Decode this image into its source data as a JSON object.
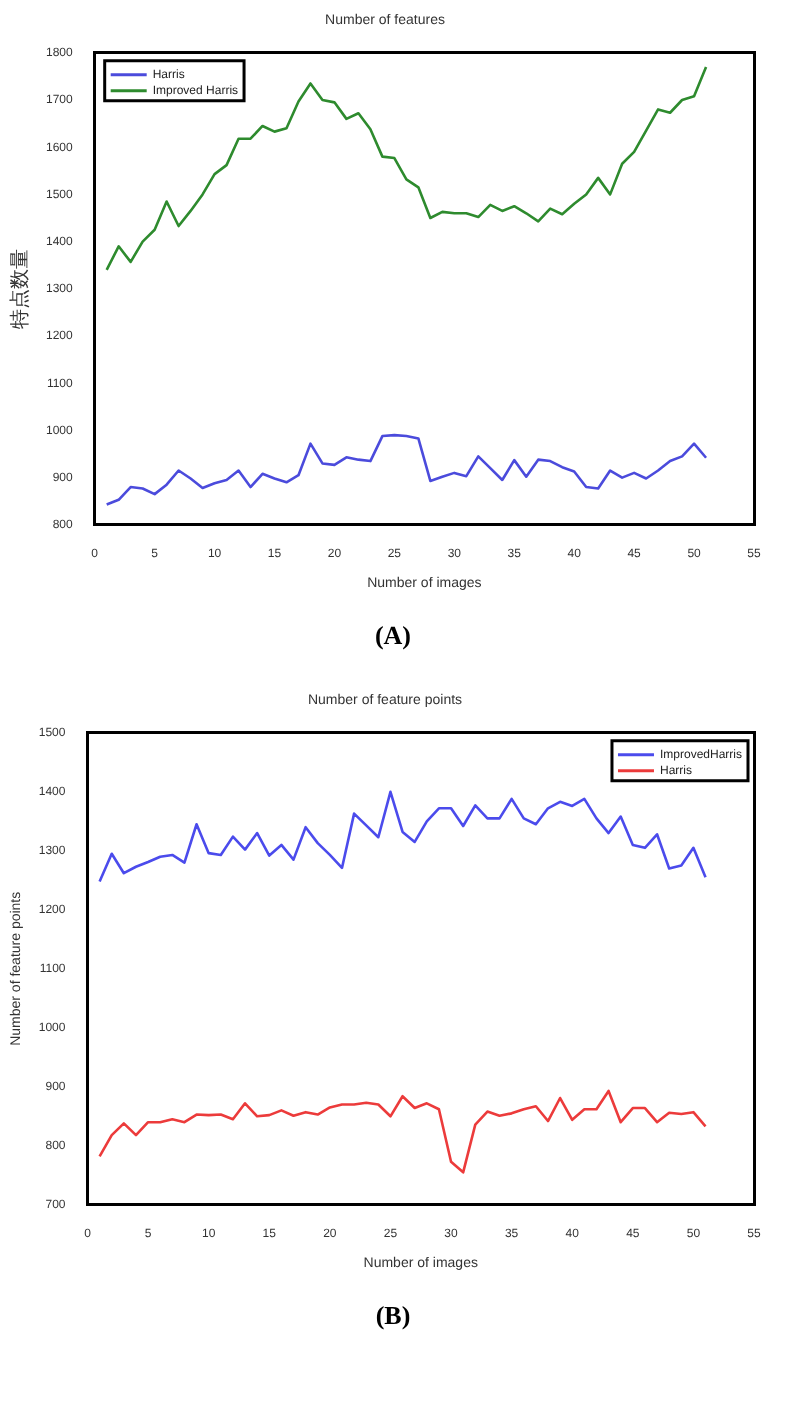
{
  "chart_data": [
    {
      "type": "line",
      "title": "Number of features",
      "xlabel": "Number of images",
      "ylabel": "特点数量",
      "annotations": [
        "(A)"
      ],
      "x": [
        1,
        2,
        3,
        4,
        5,
        6,
        7,
        8,
        9,
        10,
        11,
        12,
        13,
        14,
        15,
        16,
        17,
        18,
        19,
        20,
        21,
        22,
        23,
        24,
        25,
        26,
        27,
        28,
        29,
        30,
        31,
        32,
        33,
        34,
        35,
        36,
        37,
        38,
        39,
        40,
        41,
        42,
        43,
        44,
        45,
        46,
        47,
        48,
        49,
        50,
        51
      ],
      "series": [
        {
          "name": "Harris",
          "color": "#4b4bdc",
          "values": [
            843,
            853,
            880,
            877,
            865,
            885,
            915,
            898,
            878,
            888,
            895,
            915,
            880,
            908,
            898,
            890,
            905,
            972,
            930,
            927,
            943,
            938,
            935,
            988,
            990,
            988,
            983,
            893,
            902,
            910,
            903,
            945,
            920,
            895,
            937,
            902,
            938,
            935,
            922,
            913,
            880,
            877,
            915,
            900,
            910,
            898,
            915,
            935,
            945,
            972,
            942
          ]
        },
        {
          "name": "Improved Harris",
          "color": "#2e8b2e",
          "values": [
            1340,
            1390,
            1357,
            1400,
            1425,
            1485,
            1433,
            1465,
            1500,
            1543,
            1562,
            1618,
            1618,
            1645,
            1633,
            1640,
            1697,
            1735,
            1700,
            1695,
            1660,
            1672,
            1638,
            1580,
            1577,
            1532,
            1515,
            1450,
            1463,
            1460,
            1460,
            1452,
            1478,
            1465,
            1475,
            1460,
            1443,
            1470,
            1458,
            1480,
            1500,
            1535,
            1500,
            1565,
            1590,
            1635,
            1680,
            1673,
            1700,
            1708,
            1770
          ]
        }
      ],
      "xlim": [
        0,
        55
      ],
      "xticks": [
        0,
        5,
        10,
        15,
        20,
        25,
        30,
        35,
        40,
        45,
        50,
        55
      ],
      "ylim": [
        800,
        1800
      ],
      "yticks": [
        800,
        900,
        1000,
        1100,
        1200,
        1300,
        1400,
        1500,
        1600,
        1700,
        1800
      ],
      "legend": "top left"
    },
    {
      "type": "line",
      "title": "Number of feature points",
      "xlabel": "Number of images",
      "ylabel": "Number of feature points",
      "annotations": [
        "(B)"
      ],
      "x": [
        1,
        2,
        3,
        4,
        5,
        6,
        7,
        8,
        9,
        10,
        11,
        12,
        13,
        14,
        15,
        16,
        17,
        18,
        19,
        20,
        21,
        22,
        23,
        24,
        25,
        26,
        27,
        28,
        29,
        30,
        31,
        32,
        33,
        34,
        35,
        36,
        37,
        38,
        39,
        40,
        41,
        42,
        43,
        44,
        45,
        46,
        47,
        48,
        49,
        50,
        51
      ],
      "series": [
        {
          "name": "ImprovedHarris",
          "color": "#4b4bec",
          "values": [
            1248,
            1295,
            1262,
            1273,
            1281,
            1290,
            1293,
            1280,
            1345,
            1296,
            1293,
            1324,
            1302,
            1330,
            1292,
            1310,
            1285,
            1340,
            1313,
            1293,
            1271,
            1363,
            1343,
            1323,
            1400,
            1332,
            1315,
            1350,
            1372,
            1372,
            1342,
            1377,
            1355,
            1355,
            1388,
            1355,
            1345,
            1372,
            1383,
            1376,
            1388,
            1355,
            1330,
            1358,
            1310,
            1305,
            1328,
            1270,
            1275,
            1305,
            1255
          ]
        },
        {
          "name": "Harris",
          "color": "#ec3b3b",
          "values": [
            782,
            818,
            838,
            818,
            840,
            840,
            845,
            840,
            853,
            852,
            853,
            845,
            872,
            850,
            852,
            860,
            851,
            857,
            853,
            865,
            870,
            870,
            873,
            870,
            850,
            884,
            864,
            872,
            862,
            773,
            755,
            836,
            858,
            851,
            855,
            862,
            867,
            842,
            881,
            844,
            862,
            862,
            893,
            840,
            864,
            864,
            840,
            856,
            854,
            857,
            833
          ]
        }
      ],
      "xlim": [
        0,
        55
      ],
      "xticks": [
        0,
        5,
        10,
        15,
        20,
        25,
        30,
        35,
        40,
        45,
        50,
        55
      ],
      "ylim": [
        700,
        1500
      ],
      "yticks": [
        700,
        800,
        900,
        1000,
        1100,
        1200,
        1300,
        1400,
        1500
      ],
      "legend": "top right"
    }
  ]
}
